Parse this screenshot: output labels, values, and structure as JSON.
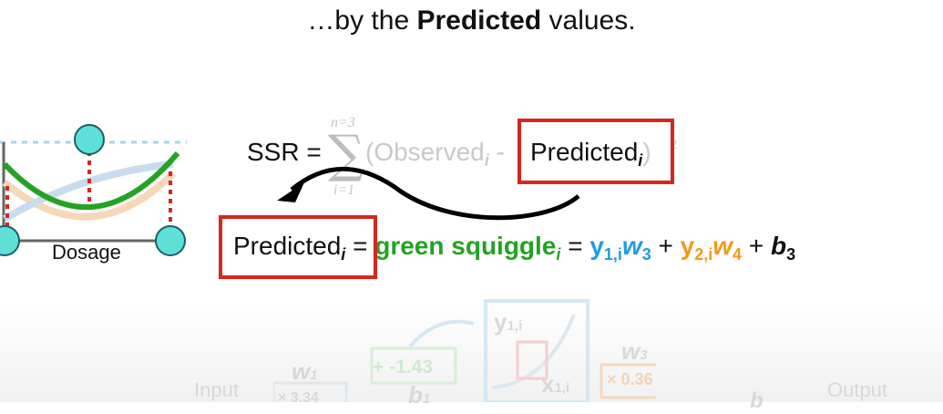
{
  "title": {
    "prefix": "…by the ",
    "bold": "Predicted",
    "suffix": " values."
  },
  "plot": {
    "xlabel": "Dosage"
  },
  "ssr": {
    "lhs": "SSR =",
    "sum_upper": "n=3",
    "sum_lower": "i=1",
    "open": "(Observed",
    "sub_i": "i",
    "minus": "-",
    "predicted": "Predicted",
    "close": ")",
    "power": "2"
  },
  "equation": {
    "predicted": "Predicted",
    "sub_i": "i",
    "eq1": "=",
    "green_squiggle": "green squiggle",
    "eq2": "=",
    "y1": "y",
    "y1_sub": "1,i",
    "w3": "w",
    "w3_sub": "3",
    "plus1": "+",
    "y2": "y",
    "y2_sub": "2,i",
    "w4": "w",
    "w4_sub": "4",
    "plus2": "+",
    "b3": "b",
    "b3_sub": "3"
  },
  "background_net": {
    "input": "Input",
    "w1": "w",
    "w1_sub": "1",
    "val1": "+ -1.43",
    "b1": "b",
    "b1_sub": "1",
    "y1": "y",
    "y1_sub": "1,i",
    "x1": "x",
    "x1_sub": "1,i",
    "w3": "w",
    "w3_sub": "3",
    "val3": "× 0.36",
    "output": "Output",
    "val_w1": "× 3.34",
    "b3": "b"
  },
  "colors": {
    "green": "#23a323",
    "blue": "#1e9be6",
    "orange": "#f29a16",
    "red": "#d6261f",
    "cyan": "#5ee0d8"
  }
}
